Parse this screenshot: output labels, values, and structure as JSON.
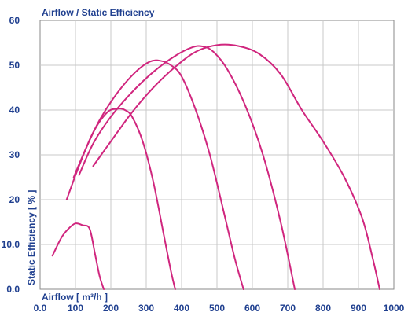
{
  "chart_data": {
    "type": "line",
    "title": "Airflow / Static Efficiency",
    "xlabel": "Airflow [ m³/h ]",
    "ylabel": "Static Efficiency [ % ]",
    "xlim": [
      0,
      1000
    ],
    "ylim": [
      0,
      60
    ],
    "x_ticks": [
      0,
      100,
      200,
      300,
      400,
      500,
      600,
      700,
      800,
      900,
      1000
    ],
    "x_tick_labels": [
      "0.0",
      "100",
      "200",
      "300",
      "400",
      "500",
      "600",
      "700",
      "800",
      "900",
      "1000"
    ],
    "y_ticks": [
      0,
      10,
      20,
      30,
      40,
      50,
      60
    ],
    "y_tick_labels": [
      "0.0",
      "10.0",
      "20",
      "30",
      "40",
      "50",
      "60"
    ],
    "grid": true,
    "line_color": "#d0267e",
    "series": [
      {
        "x": [
          35,
          60,
          80,
          100,
          120,
          140,
          155,
          168,
          180
        ],
        "y": [
          7.5,
          11.5,
          13.5,
          14.7,
          14.3,
          13.5,
          8,
          3,
          0
        ]
      },
      {
        "x": [
          75,
          110,
          150,
          190,
          220,
          240,
          260,
          290,
          320,
          350,
          370,
          382
        ],
        "y": [
          20,
          27.5,
          35,
          39.5,
          40.3,
          40,
          38.5,
          33,
          24,
          12,
          4,
          0
        ]
      },
      {
        "x": [
          95,
          130,
          170,
          220,
          270,
          310,
          340,
          370,
          400,
          440,
          480,
          520,
          550,
          575
        ],
        "y": [
          25,
          31.5,
          38,
          44,
          48.5,
          50.8,
          51,
          50,
          47.5,
          40,
          30,
          17,
          7,
          0
        ]
      },
      {
        "x": [
          110,
          150,
          200,
          260,
          320,
          380,
          430,
          460,
          490,
          530,
          580,
          630,
          680,
          720
        ],
        "y": [
          25.5,
          32.5,
          38.5,
          44,
          48.5,
          52,
          54,
          54.2,
          53,
          49,
          41,
          30,
          15,
          0
        ]
      },
      {
        "x": [
          150,
          200,
          260,
          320,
          380,
          440,
          500,
          560,
          620,
          680,
          740,
          800,
          860,
          910,
          940,
          960
        ],
        "y": [
          27.5,
          33,
          39.5,
          45,
          49.5,
          53,
          54.5,
          54.3,
          52.5,
          48,
          40,
          33,
          25,
          16,
          7,
          0
        ]
      }
    ]
  }
}
